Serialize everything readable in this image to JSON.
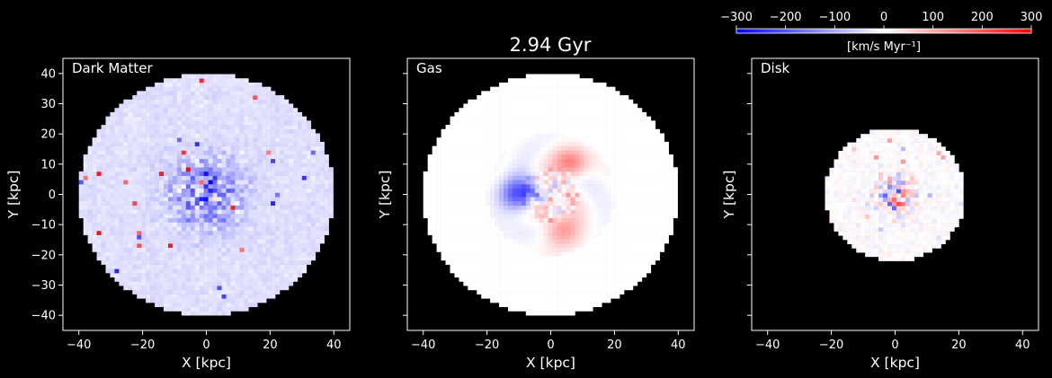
{
  "figure": {
    "title": "2.94 Gyr"
  },
  "colorbar": {
    "label": "[km/s  Myr⁻¹]",
    "range": [
      -300,
      300
    ],
    "ticks": [
      -300,
      -200,
      -100,
      0,
      100,
      200,
      300
    ],
    "tick_labels": [
      "−300",
      "−200",
      "−100",
      "0",
      "100",
      "200",
      "300"
    ],
    "colors": {
      "low": "#0000ff",
      "mid": "#ffffff",
      "high": "#ff0000"
    }
  },
  "chart_data": [
    {
      "type": "heatmap",
      "panel_label": "Dark Matter",
      "xlabel": "X [kpc]",
      "ylabel": "Y [kpc]",
      "xlim": [
        -45,
        45
      ],
      "ylim": [
        -45,
        45
      ],
      "xticks": [
        -40,
        -20,
        0,
        20,
        40
      ],
      "yticks": [
        -40,
        -30,
        -20,
        -10,
        0,
        10,
        20,
        30,
        40
      ],
      "xtick_labels": [
        "−40",
        "−20",
        "0",
        "20",
        "40"
      ],
      "ytick_labels": [
        "−40",
        "−30",
        "−20",
        "−10",
        "0",
        "10",
        "20",
        "30",
        "40"
      ],
      "show_ytick_labels": true,
      "data_radius_kpc": 40,
      "background": "#000000",
      "pattern": "noisy-blue-center"
    },
    {
      "type": "heatmap",
      "panel_label": "Gas",
      "xlabel": "X [kpc]",
      "ylabel": "Y [kpc]",
      "xlim": [
        -45,
        45
      ],
      "ylim": [
        -45,
        45
      ],
      "xticks": [
        -40,
        -20,
        0,
        20,
        40
      ],
      "yticks": [
        -40,
        -30,
        -20,
        -10,
        0,
        10,
        20,
        30,
        40
      ],
      "xtick_labels": [
        "−40",
        "−20",
        "0",
        "20",
        "40"
      ],
      "show_ytick_labels": false,
      "data_radius_kpc": 40,
      "background": "#000000",
      "pattern": "spiral-dipole"
    },
    {
      "type": "heatmap",
      "panel_label": "Disk",
      "xlabel": "X [kpc]",
      "ylabel": "Y [kpc]",
      "xlim": [
        -45,
        45
      ],
      "ylim": [
        -45,
        45
      ],
      "xticks": [
        -40,
        -20,
        0,
        20,
        40
      ],
      "yticks": [
        -40,
        -30,
        -20,
        -10,
        0,
        10,
        20,
        30,
        40
      ],
      "xtick_labels": [
        "−40",
        "−20",
        "0",
        "20",
        "40"
      ],
      "show_ytick_labels": false,
      "data_radius_kpc": 22,
      "background": "#000000",
      "pattern": "noisy-center"
    }
  ]
}
